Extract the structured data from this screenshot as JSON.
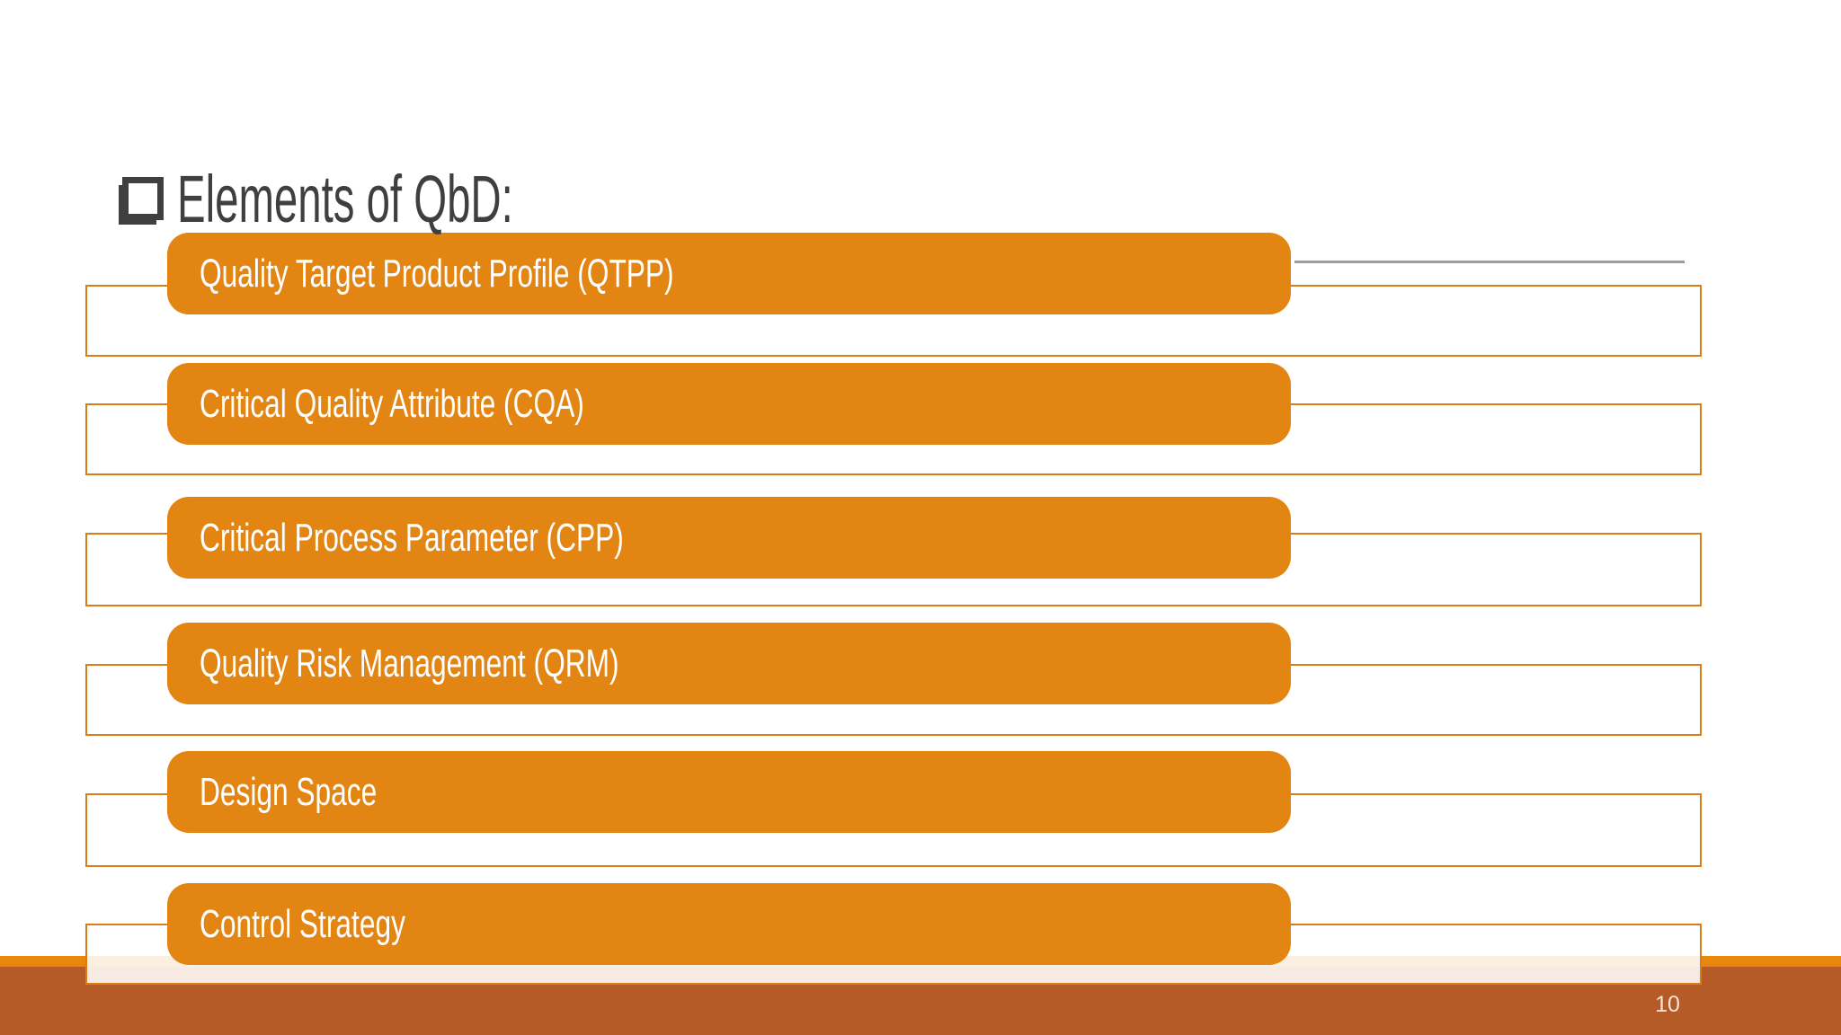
{
  "slide": {
    "title": "Elements of QbD:",
    "page_number": "10"
  },
  "elements": [
    {
      "label": "Quality Target Product Profile (QTPP)"
    },
    {
      "label": "Critical Quality Attribute (CQA)"
    },
    {
      "label": "Critical Process Parameter (CPP)"
    },
    {
      "label": "Quality Risk Management (QRM)"
    },
    {
      "label": "Design Space"
    },
    {
      "label": "Control Strategy"
    }
  ],
  "icons": {
    "title_bullet": "shadowed-open-square-bullet"
  },
  "colors": {
    "bar_orange": "#E28512",
    "box_border_orange": "#D87D18",
    "footer_light_orange": "#E8860D",
    "footer_dark_orange": "#B55B27",
    "title_gray": "#3F3F3F",
    "underline_gray": "#9C9C9C",
    "page_number_text": "#F1E4D7",
    "bar_label_text": "#FFFFFF"
  }
}
